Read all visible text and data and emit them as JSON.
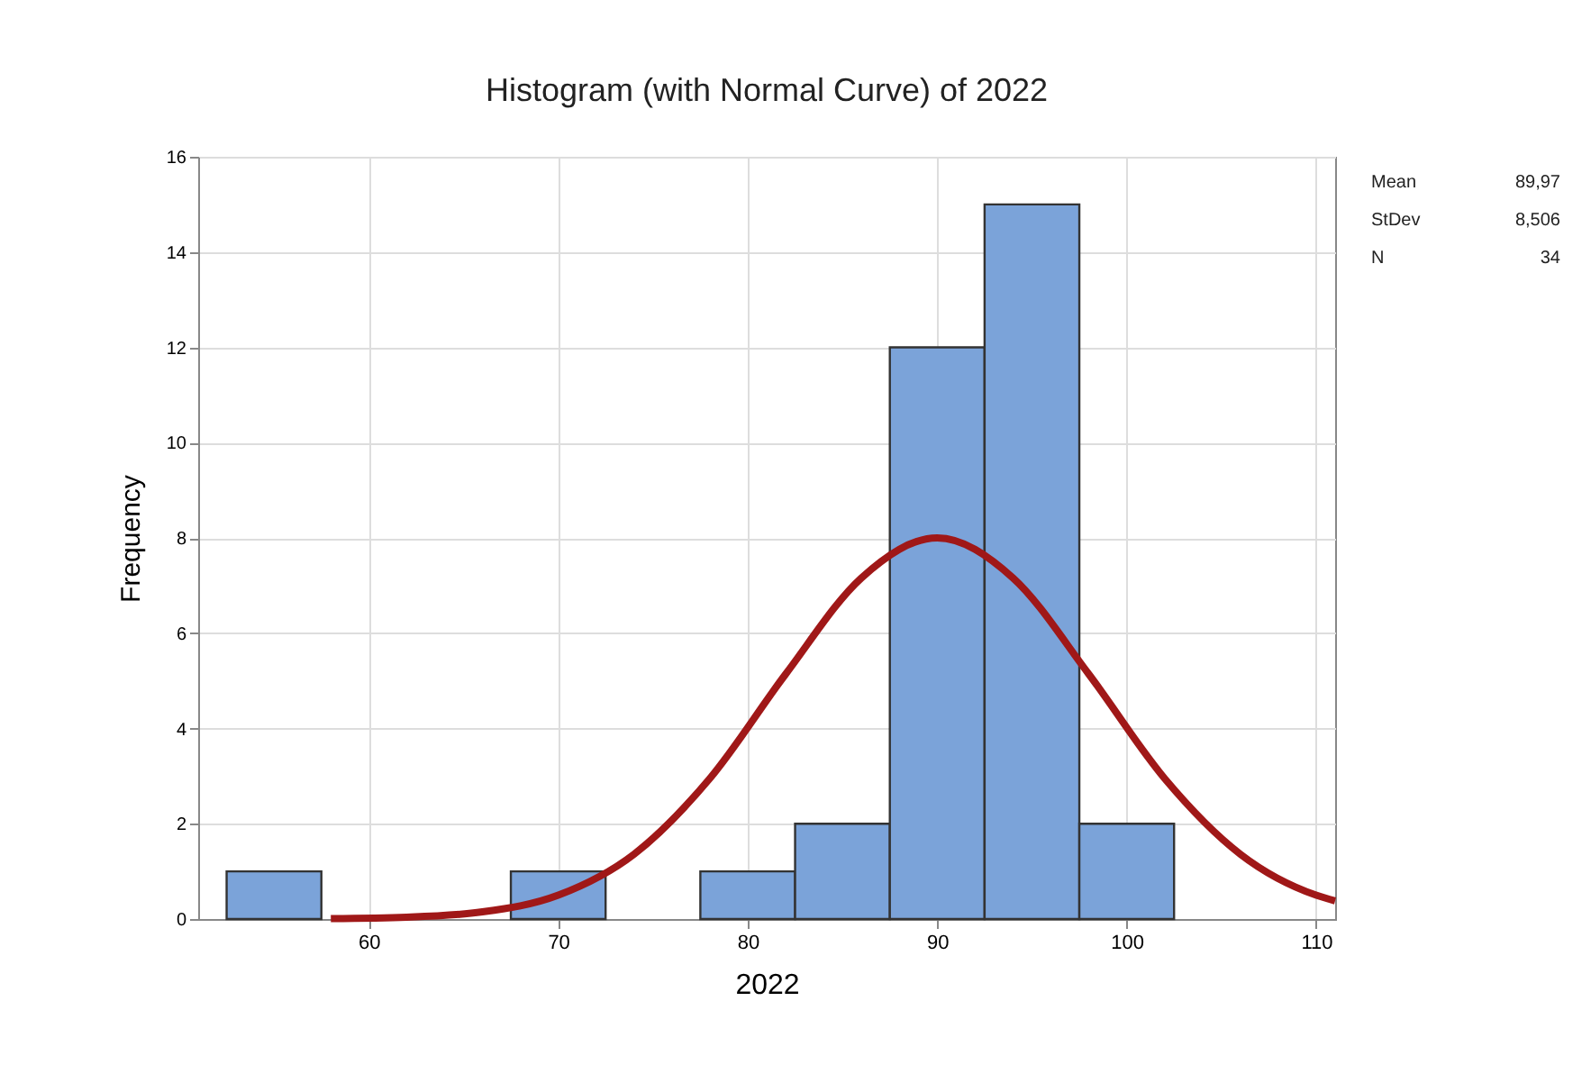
{
  "chart_data": {
    "type": "histogram",
    "title": "Histogram (with Normal Curve) of 2022",
    "xlabel": "2022",
    "ylabel": "Frequency",
    "bins": [
      52.5,
      57.5,
      62.5,
      67.5,
      72.5,
      77.5,
      82.5,
      87.5,
      92.5,
      97.5,
      102.5
    ],
    "values": [
      1,
      0,
      0,
      1,
      0,
      1,
      2,
      12,
      15,
      2
    ],
    "color": "#7ba3d9",
    "series": [
      {
        "type": "line",
        "color": "#a01818",
        "x": [
          58,
          62,
          66,
          70,
          74,
          78,
          82,
          86,
          90,
          94,
          98,
          102,
          106,
          110,
          111
        ],
        "values": [
          0.01,
          0.04,
          0.15,
          0.5,
          1.36,
          2.95,
          5.14,
          7.16,
          8,
          7.16,
          5.14,
          2.95,
          1.36,
          0.5,
          0.38
        ]
      }
    ],
    "xlim": [
      51,
      111
    ],
    "xticks": [
      60,
      70,
      80,
      90,
      100,
      110
    ],
    "ylim": [
      0,
      16
    ],
    "yticks": [
      0,
      2,
      4,
      6,
      8,
      10,
      12,
      14,
      16
    ],
    "grid": true,
    "line_style": "solid",
    "marker": "none",
    "annotations": [
      "Mean",
      "89,97",
      "StDev",
      "8,506",
      "N",
      "34"
    ]
  }
}
